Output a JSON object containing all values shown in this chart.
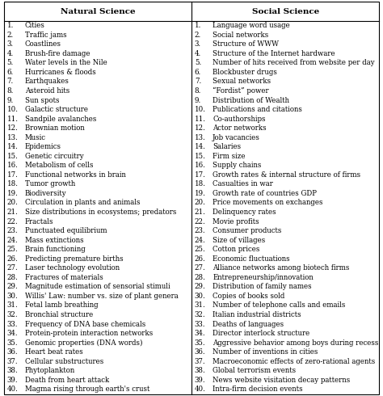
{
  "col1_header": "Natural Science",
  "col2_header": "Social Science",
  "natural_science": [
    "Cities",
    "Traffic jams",
    "Coastlines",
    "Brush-fire damage",
    "Water levels in the Nile",
    "Hurricanes & floods",
    "Earthquakes",
    "Asteroid hits",
    "Sun spots",
    "Galactic structure",
    "Sandpile avalanches",
    "Brownian motion",
    "Music",
    "Epidemics",
    "Genetic circuitry",
    "Metabolism of cells",
    "Functional networks in brain",
    "Tumor growth",
    "Biodiversity",
    "Circulation in plants and animals",
    "Size distributions in ecosystems; predators",
    "Fractals",
    "Punctuated equilibrium",
    "Mass extinctions",
    "Brain functioning",
    "Predicting premature births",
    "Laser technology evolution",
    "Fractures of materials",
    "Magnitude estimation of sensorial stimuli",
    "Willis' Law: number vs. size of plant genera",
    "Fetal lamb breathing",
    "Bronchial structure",
    "Frequency of DNA base chemicals",
    "Protein-protein interaction networks",
    "Genomic properties (DNA words)",
    "Heart beat rates",
    "Cellular substructures",
    "Phytoplankton",
    "Death from heart attack",
    "Magma rising through earth's crust"
  ],
  "social_science": [
    "Language word usage",
    "Social networks",
    "Structure of WWW",
    "Structure of the Internet hardware",
    "Number of hits received from website per day",
    "Blockbuster drugs",
    "Sexual networks",
    "“Fordist” power",
    "Distribution of Wealth",
    "Publications and citations",
    "Co-authorships",
    "Actor networks",
    "Job vacancies",
    "Salaries",
    "Firm size",
    "Supply chains",
    "Growth rates & internal structure of firms",
    "Casualties in war",
    "Growth rate of countries GDP",
    "Price movements on exchanges",
    "Delinquency rates",
    "Movie profits",
    "Consumer products",
    "Size of villages",
    "Cotton prices",
    "Economic fluctuations",
    "Alliance networks among biotech firms",
    "Entrepreneurship/innovation",
    "Distribution of family names",
    "Copies of books sold",
    "Number of telephone calls and emails",
    "Italian industrial districts",
    "Deaths of languages",
    "Director interlock structure",
    "Aggressive behavior among boys during recess",
    "Number of inventions in cities",
    "Macroeconomic effects of zero-rational agents",
    "Global terrorism events",
    "News website visitation decay patterns",
    "Intra-firm decision events"
  ],
  "bg_color": "#ffffff",
  "header_fontsize": 7.5,
  "row_fontsize": 6.2,
  "fig_width": 4.74,
  "fig_height": 4.9,
  "dpi": 100
}
